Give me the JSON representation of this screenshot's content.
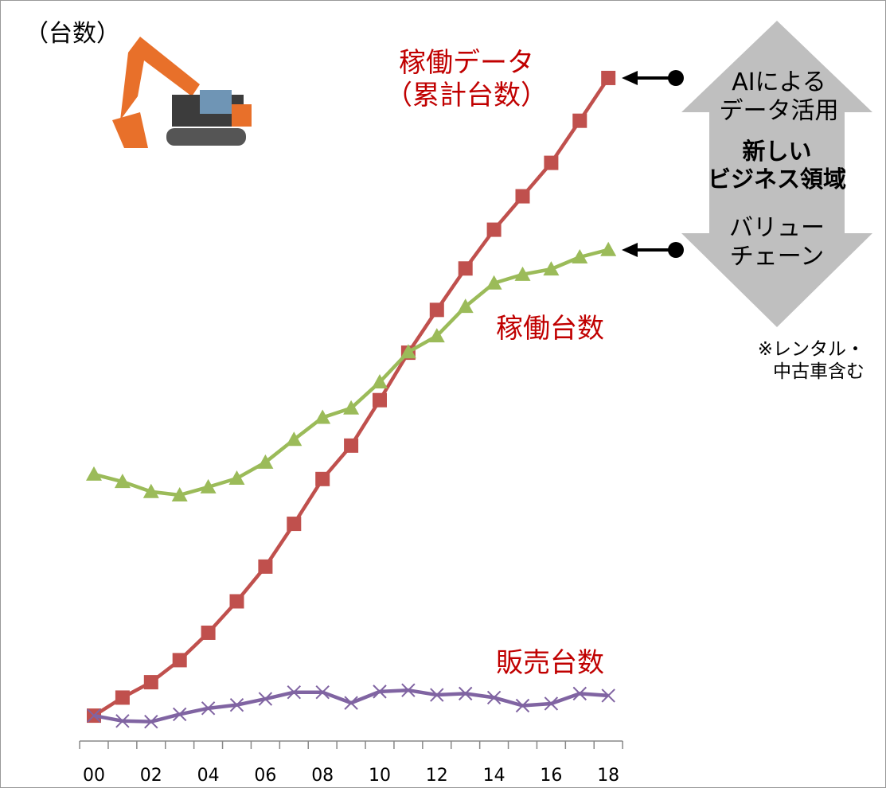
{
  "chart_data": {
    "type": "line",
    "y_label": "（台数）",
    "categories": [
      "00",
      null,
      "02",
      null,
      "04",
      null,
      "06",
      null,
      "08",
      null,
      "10",
      null,
      "12",
      null,
      "14",
      null,
      "16",
      null,
      "18"
    ],
    "ylim": [
      -3.6,
      100
    ],
    "label_color": "#c00000",
    "series": [
      {
        "name": "稼働データ\n（累計台数）",
        "color": "#c0504d",
        "marker": "square",
        "values": [
          0.2,
          2.9,
          5.2,
          8.5,
          12.6,
          17.3,
          22.5,
          28.9,
          35.6,
          40.6,
          47.4,
          54.5,
          60.9,
          67.1,
          72.9,
          77.9,
          82.9,
          89.2,
          95.6
        ]
      },
      {
        "name": "稼働台数",
        "color": "#9bbb59",
        "marker": "triangle",
        "values": [
          36.3,
          35.2,
          33.7,
          33.2,
          34.4,
          35.7,
          38.1,
          41.5,
          44.8,
          46.2,
          50.1,
          54.6,
          57.0,
          61.4,
          64.9,
          66.2,
          67.0,
          68.8,
          69.9
        ]
      },
      {
        "name": "販売台数",
        "color": "#8064a2",
        "marker": "x",
        "values": [
          0.2,
          -0.6,
          -0.7,
          0.4,
          1.3,
          1.8,
          2.7,
          3.7,
          3.7,
          2.1,
          3.8,
          4.0,
          3.3,
          3.5,
          2.9,
          1.7,
          2.0,
          3.5,
          3.2
        ]
      }
    ],
    "annotations": {
      "top": "AIによる\nデータ活用",
      "middle": "新しい\nビジネス領域",
      "bottom": "バリュー\nチェーン",
      "note": "※レンタル・\n中古車含む"
    }
  }
}
